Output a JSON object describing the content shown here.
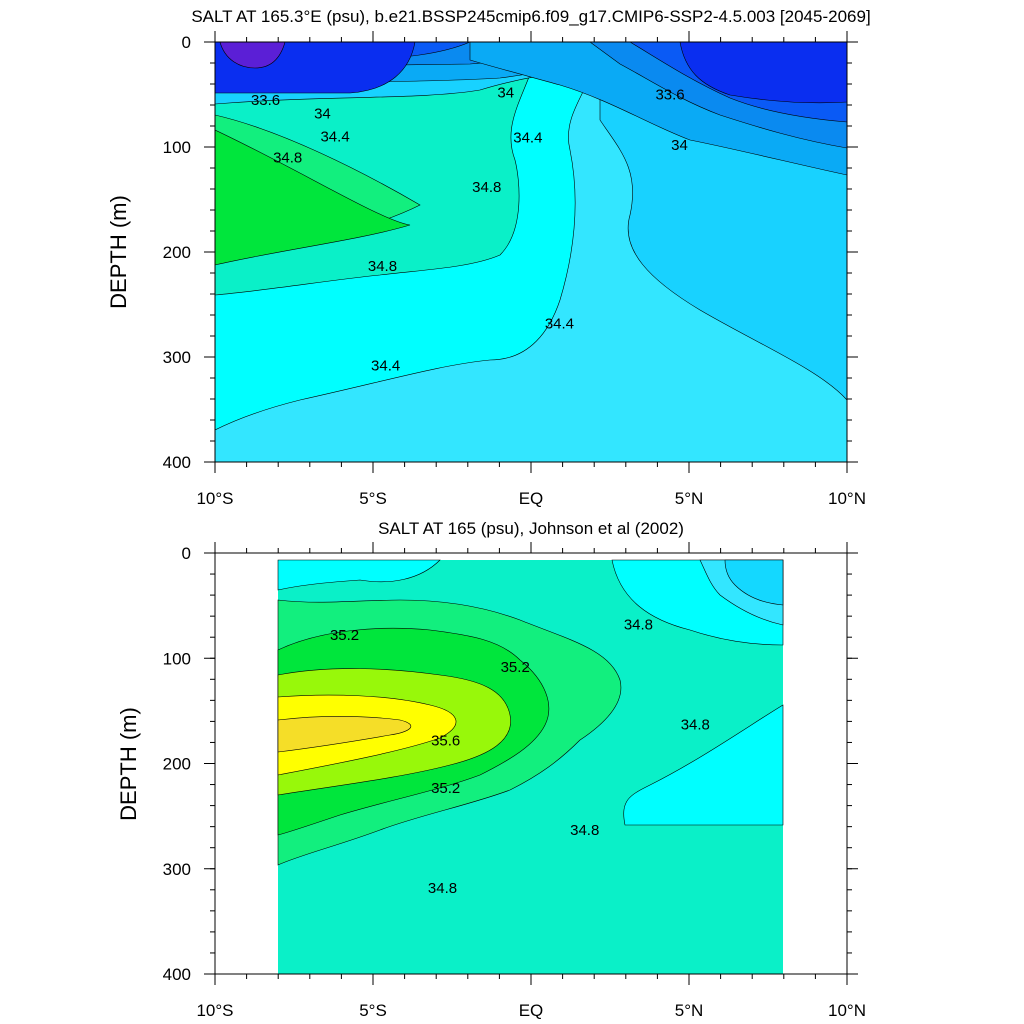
{
  "chart_data": [
    {
      "type": "contour",
      "title": "SALT AT 165.3°E (psu), b.e21.BSSP245cmip6.f09_g17.CMIP6-SSP2-4.5.003 [2045-2069]",
      "xlabel": "",
      "ylabel": "DEPTH (m)",
      "xlim": [
        -10,
        10
      ],
      "ylim": [
        400,
        0
      ],
      "x_ticks": [
        {
          "value": -10,
          "label": "10°S"
        },
        {
          "value": -5,
          "label": "5°S"
        },
        {
          "value": 0,
          "label": "EQ"
        },
        {
          "value": 5,
          "label": "5°N"
        },
        {
          "value": 10,
          "label": "10°N"
        }
      ],
      "y_ticks": [
        0,
        100,
        200,
        300,
        400
      ],
      "contour_labels": [
        {
          "text": "33.6",
          "lat": -8.4,
          "depth": 57
        },
        {
          "text": "34",
          "lat": -6.6,
          "depth": 70
        },
        {
          "text": "34.4",
          "lat": -6.2,
          "depth": 92
        },
        {
          "text": "34.8",
          "lat": -7.7,
          "depth": 112
        },
        {
          "text": "34",
          "lat": -0.8,
          "depth": 50
        },
        {
          "text": "33.6",
          "lat": 4.4,
          "depth": 52
        },
        {
          "text": "34.4",
          "lat": -0.1,
          "depth": 93
        },
        {
          "text": "34",
          "lat": 4.7,
          "depth": 100
        },
        {
          "text": "34.8",
          "lat": -1.4,
          "depth": 140
        },
        {
          "text": "34.8",
          "lat": -4.7,
          "depth": 215
        },
        {
          "text": "34.4",
          "lat": 0.9,
          "depth": 270
        },
        {
          "text": "34.4",
          "lat": -4.6,
          "depth": 310
        }
      ],
      "fill_levels": [
        {
          "label": "<33.2",
          "color": "#5b1fd6"
        },
        {
          "label": "33.2-33.6",
          "color": "#0a2ef0"
        },
        {
          "label": "33.6-33.8",
          "color": "#0a5af5"
        },
        {
          "label": "33.8-34",
          "color": "#0a8af0"
        },
        {
          "label": "34-34.2",
          "color": "#0aaaf5"
        },
        {
          "label": "34.2-34.4",
          "color": "#18d2ff"
        },
        {
          "label": "34.4-34.6",
          "color": "#33e6ff"
        },
        {
          "label": "34.6-34.8",
          "color": "#00ffff"
        },
        {
          "label": "34.8-35.0",
          "color": "#0af0c8"
        },
        {
          "label": "35.0-35.2",
          "color": "#12ef7e"
        },
        {
          "label": ">35.2",
          "color": "#00e63c"
        }
      ]
    },
    {
      "type": "contour",
      "title": "SALT AT 165 (psu), Johnson et al (2002)",
      "xlabel": "",
      "ylabel": "DEPTH (m)",
      "xlim": [
        -10,
        10
      ],
      "ylim": [
        400,
        0
      ],
      "data_extent": {
        "lat": [
          -8,
          8
        ],
        "depth": [
          0,
          400
        ]
      },
      "x_ticks": [
        {
          "value": -10,
          "label": "10°S"
        },
        {
          "value": -5,
          "label": "5°S"
        },
        {
          "value": 0,
          "label": "EQ"
        },
        {
          "value": 5,
          "label": "5°N"
        },
        {
          "value": 10,
          "label": "10°N"
        }
      ],
      "y_ticks": [
        0,
        100,
        200,
        300,
        400
      ],
      "contour_labels": [
        {
          "text": "35.2",
          "lat": -5.9,
          "depth": 80
        },
        {
          "text": "35.2",
          "lat": -0.5,
          "depth": 110
        },
        {
          "text": "34.8",
          "lat": 3.4,
          "depth": 70
        },
        {
          "text": "35.6",
          "lat": -2.7,
          "depth": 180
        },
        {
          "text": "35.2",
          "lat": -2.7,
          "depth": 225
        },
        {
          "text": "34.8",
          "lat": 5.2,
          "depth": 165
        },
        {
          "text": "34.8",
          "lat": 1.7,
          "depth": 265
        },
        {
          "text": "34.8",
          "lat": -2.8,
          "depth": 320
        }
      ],
      "fill_levels": [
        {
          "label": "34.2-34.4",
          "color": "#14d8ff"
        },
        {
          "label": "34.4-34.6",
          "color": "#33e6ff"
        },
        {
          "label": "34.6-34.8",
          "color": "#00ffff"
        },
        {
          "label": "34.8-35.0",
          "color": "#0af0c8"
        },
        {
          "label": "35.0-35.2",
          "color": "#12ef7e"
        },
        {
          "label": "35.2-35.4",
          "color": "#00e63c"
        },
        {
          "label": "35.4-35.6",
          "color": "#98f80a"
        },
        {
          "label": "35.6-35.8",
          "color": "#ffff00"
        },
        {
          "label": ">35.8",
          "color": "#f5de28"
        }
      ]
    }
  ]
}
